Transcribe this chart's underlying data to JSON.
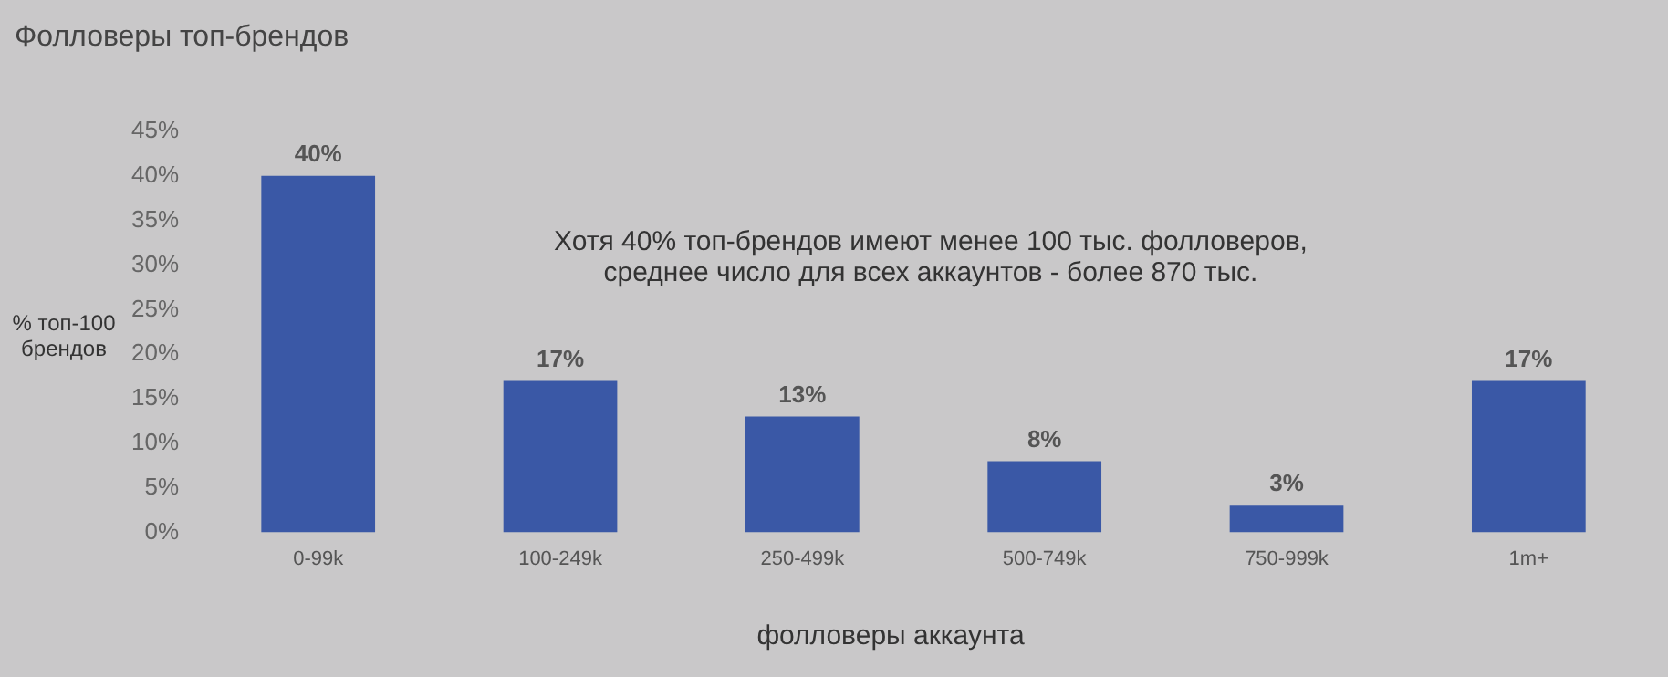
{
  "chart_data": {
    "type": "bar",
    "title": "Фолловеры топ-брендов",
    "xlabel": "фолловеры аккаунта",
    "ylabel": "% топ-100 брендов",
    "annotations": [
      "Хотя 40% топ-брендов имеют менее 100 тыс. фолловеров, среднее число для всех аккаунтов - более 870 тыс."
    ],
    "categories": [
      "0-99k",
      "100-249k",
      "250-499k",
      "500-749k",
      "750-999k",
      "1m+"
    ],
    "values": [
      40,
      17,
      13,
      8,
      3,
      17
    ],
    "value_labels": [
      "40%",
      "17%",
      "13%",
      "8%",
      "3%",
      "17%"
    ],
    "color": "#3a58a6",
    "ylim": [
      0,
      45
    ],
    "yticks": [
      {
        "value": 0,
        "label": "0%"
      },
      {
        "value": 5,
        "label": "5%"
      },
      {
        "value": 10,
        "label": "10%"
      },
      {
        "value": 15,
        "label": "15%"
      },
      {
        "value": 20,
        "label": "20%"
      },
      {
        "value": 25,
        "label": "25%"
      },
      {
        "value": 30,
        "label": "30%"
      },
      {
        "value": 35,
        "label": "35%"
      },
      {
        "value": 40,
        "label": "40%"
      },
      {
        "value": 45,
        "label": "45%"
      }
    ],
    "grid": false,
    "legend": false
  }
}
